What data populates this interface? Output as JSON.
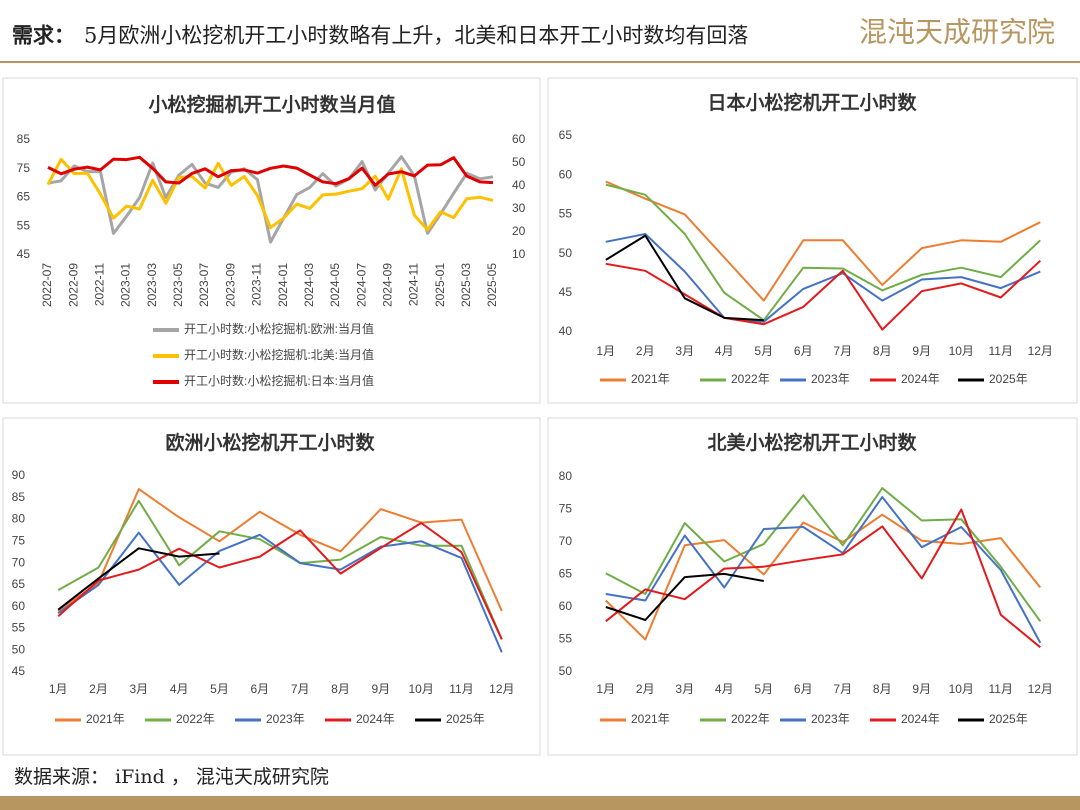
{
  "header": {
    "label": "需求：",
    "title": "5月欧洲小松挖机开工小时数略有上升，北美和日本开工小时数均有回落",
    "logo": "混沌天成研究院"
  },
  "footer": {
    "source": "数据来源： iFind ， 混沌天成研究院"
  },
  "chart_data": [
    {
      "type": "line",
      "title": "小松挖掘机开工小时数当月值",
      "categories": [
        "2022-07",
        null,
        "2022-09",
        null,
        "2022-11",
        null,
        "2023-01",
        null,
        "2023-03",
        null,
        "2023-05",
        null,
        "2023-07",
        null,
        "2023-09",
        null,
        "2023-11",
        null,
        "2024-01",
        null,
        "2024-03",
        null,
        "2024-05",
        null,
        "2024-07",
        null,
        "2024-09",
        null,
        "2024-11",
        null,
        "2025-01",
        null,
        "2025-03",
        null,
        "2025-05"
      ],
      "ylim": [
        45,
        85
      ],
      "yticks": [
        45,
        55,
        65,
        75,
        85
      ],
      "y2lim": [
        10,
        60
      ],
      "y2ticks": [
        10,
        20,
        30,
        40,
        50,
        60
      ],
      "grid": false,
      "legend": "bottom",
      "series": [
        {
          "name": "开工小时数:小松挖掘机:欧洲:当月值",
          "color": "#a5a5a5",
          "values": [
            70,
            70.8,
            76,
            74,
            74,
            52.5,
            58.5,
            65,
            77,
            65,
            72.8,
            76.5,
            70,
            68.5,
            73.8,
            75,
            71.2,
            49.5,
            57.8,
            66,
            68.5,
            73.3,
            69,
            71.5,
            77.5,
            67.6,
            73.5,
            79.2,
            72.5,
            52.5,
            59.3,
            66.5,
            73.4,
            71.5,
            72.2
          ]
        },
        {
          "name": "开工小时数:小松挖掘机:北美:当月值",
          "color": "#ffc000",
          "values": [
            69.5,
            78.3,
            73.3,
            73.5,
            66.2,
            57.8,
            62,
            61,
            71,
            63,
            72,
            72.3,
            68.3,
            76.9,
            69.2,
            72.3,
            65.7,
            54.5,
            57.8,
            62.7,
            61.2,
            65.9,
            66.2,
            67.2,
            68.1,
            72.4,
            64.4,
            75,
            58.8,
            53.8,
            60,
            58,
            64.6,
            65.1,
            64
          ]
        },
        {
          "name": "开工小时数:小松挖掘机:日本:当月值",
          "color": "#e00000",
          "axis": "y2",
          "values": [
            48.1,
            45.3,
            47.3,
            48.2,
            47,
            51.7,
            51.5,
            52.5,
            47.7,
            41.8,
            41.3,
            45.5,
            47.5,
            44,
            46.7,
            47,
            45.6,
            47.7,
            48.7,
            47.8,
            44.8,
            41.8,
            41,
            43.2,
            47.8,
            40.3,
            45.2,
            46.2,
            44.4,
            49.1,
            49.2,
            52.3,
            44.3,
            41.8,
            41.5
          ]
        }
      ]
    },
    {
      "type": "line",
      "title": "日本小松挖机开工小时数",
      "categories": [
        "1月",
        "2月",
        "3月",
        "4月",
        "5月",
        "6月",
        "7月",
        "8月",
        "9月",
        "10月",
        "11月",
        "12月"
      ],
      "ylim": [
        40,
        65
      ],
      "yticks": [
        40,
        45,
        50,
        55,
        60,
        65
      ],
      "grid": false,
      "legend": "bottom",
      "series": [
        {
          "name": "2021年",
          "color": "#ed7d31",
          "values": [
            59.2,
            57,
            55,
            49.5,
            44,
            51.7,
            51.7,
            46,
            50.7,
            51.7,
            51.5,
            54
          ]
        },
        {
          "name": "2022年",
          "color": "#70ad47",
          "values": [
            58.8,
            57.5,
            52.5,
            45,
            41.5,
            48.2,
            48.1,
            45.3,
            47.3,
            48.2,
            47,
            51.7
          ]
        },
        {
          "name": "2023年",
          "color": "#4472c4",
          "values": [
            51.5,
            52.5,
            47.7,
            41.8,
            41.3,
            45.5,
            47.5,
            44,
            46.7,
            47,
            45.6,
            47.7
          ]
        },
        {
          "name": "2024年",
          "color": "#e31a1c",
          "values": [
            48.7,
            47.8,
            44.8,
            41.8,
            41,
            43.2,
            47.8,
            40.3,
            45.2,
            46.2,
            44.4,
            49.1
          ]
        },
        {
          "name": "2025年",
          "color": "#000000",
          "values": [
            49.2,
            52.3,
            44.3,
            41.8,
            41.5,
            null,
            null,
            null,
            null,
            null,
            null,
            null
          ]
        }
      ]
    },
    {
      "type": "line",
      "title": "欧洲小松挖机开工小时数",
      "categories": [
        "1月",
        "2月",
        "3月",
        "4月",
        "5月",
        "6月",
        "7月",
        "8月",
        "9月",
        "10月",
        "11月",
        "12月"
      ],
      "ylim": [
        45,
        90
      ],
      "yticks": [
        45,
        50,
        55,
        60,
        65,
        70,
        75,
        80,
        85,
        90
      ],
      "grid": false,
      "legend": "bottom",
      "series": [
        {
          "name": "2021年",
          "color": "#ed7d31",
          "values": [
            59,
            65.5,
            87,
            80.5,
            75,
            81.8,
            76.5,
            72.7,
            82.4,
            79.3,
            80,
            59
          ]
        },
        {
          "name": "2022年",
          "color": "#70ad47",
          "values": [
            63.8,
            69,
            84.3,
            69.5,
            77.3,
            75.5,
            70,
            70.8,
            76,
            74,
            74,
            52.5
          ]
        },
        {
          "name": "2023年",
          "color": "#4472c4",
          "values": [
            58.5,
            65,
            77,
            65,
            72.8,
            76.5,
            70,
            68.5,
            73.8,
            75,
            71.2,
            49.5
          ]
        },
        {
          "name": "2024年",
          "color": "#e31a1c",
          "values": [
            57.8,
            66,
            68.5,
            73.3,
            69,
            71.5,
            77.5,
            67.6,
            73.5,
            79.2,
            72.5,
            52.5
          ]
        },
        {
          "name": "2025年",
          "color": "#000000",
          "values": [
            59.3,
            66.5,
            73.4,
            71.5,
            72.2,
            null,
            null,
            null,
            null,
            null,
            null,
            null
          ]
        }
      ]
    },
    {
      "type": "line",
      "title": "北美小松挖机开工小时数",
      "categories": [
        "1月",
        "2月",
        "3月",
        "4月",
        "5月",
        "6月",
        "7月",
        "8月",
        "9月",
        "10月",
        "11月",
        "12月"
      ],
      "ylim": [
        50,
        80
      ],
      "yticks": [
        50,
        55,
        60,
        65,
        70,
        75,
        80
      ],
      "grid": false,
      "legend": "bottom",
      "series": [
        {
          "name": "2021年",
          "color": "#ed7d31",
          "values": [
            61,
            55,
            69.5,
            70.3,
            65,
            73,
            70,
            74.2,
            70.2,
            69.7,
            70.6,
            63
          ]
        },
        {
          "name": "2022年",
          "color": "#70ad47",
          "values": [
            65.2,
            62,
            72.9,
            67,
            69.7,
            77.2,
            69.5,
            78.3,
            73.3,
            73.5,
            66.2,
            57.8
          ]
        },
        {
          "name": "2023年",
          "color": "#4472c4",
          "values": [
            62,
            61,
            71,
            63,
            72,
            72.3,
            68.3,
            76.9,
            69.2,
            72.3,
            65.7,
            54.5
          ]
        },
        {
          "name": "2024年",
          "color": "#e31a1c",
          "values": [
            57.8,
            62.7,
            61.2,
            65.9,
            66.2,
            67.2,
            68.1,
            72.4,
            64.4,
            75,
            58.8,
            53.8
          ]
        },
        {
          "name": "2025年",
          "color": "#000000",
          "values": [
            60,
            58,
            64.6,
            65.1,
            64,
            null,
            null,
            null,
            null,
            null,
            null,
            null
          ]
        }
      ]
    }
  ]
}
